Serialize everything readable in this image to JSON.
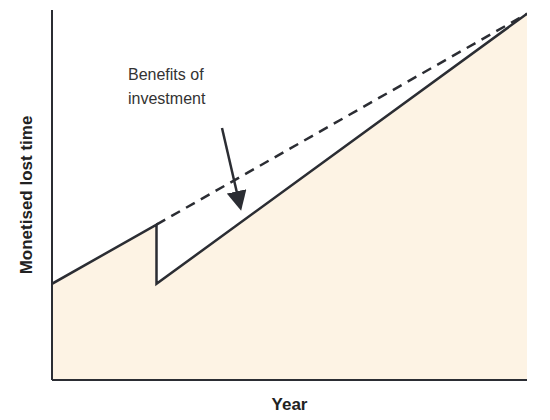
{
  "chart_data": {
    "type": "line",
    "x_label": "Year",
    "y_label": "Monetised lost time",
    "annotation": [
      "Benefits of",
      "investment"
    ],
    "xlim": [
      0,
      10
    ],
    "ylim": [
      0,
      10
    ],
    "tick_labels": false,
    "grid": false,
    "series": [
      {
        "type": "area",
        "color": "#2b2d33",
        "line_style": "solid",
        "x": [
          0,
          2.2,
          2.2,
          10
        ],
        "values": [
          2.6,
          4.2,
          2.6,
          9.9
        ]
      },
      {
        "type": "line",
        "color": "#2b2d33",
        "line_style": "dashed",
        "x": [
          2.2,
          10
        ],
        "values": [
          4.2,
          9.9
        ]
      }
    ]
  }
}
